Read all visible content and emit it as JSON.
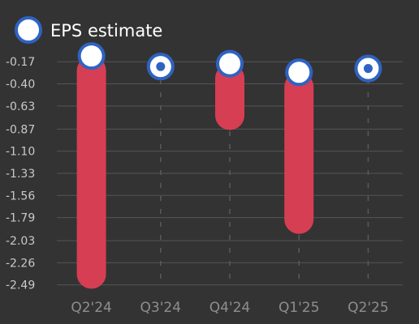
{
  "chart_data": {
    "type": "bar",
    "title": "",
    "xlabel": "",
    "ylabel": "",
    "legend": {
      "placement": "top-left",
      "entries": [
        "EPS estimate"
      ]
    },
    "categories": [
      "Q2'24",
      "Q3'24",
      "Q4'24",
      "Q1'25",
      "Q2'25"
    ],
    "series": [
      {
        "name": "EPS estimate",
        "values": [
          -0.11,
          -0.22,
          -0.19,
          -0.28,
          -0.24
        ]
      }
    ],
    "actual_low": [
      -2.53,
      -0.22,
      -0.88,
      -1.96,
      -0.24
    ],
    "yticks": [
      "-0.17",
      "-0.40",
      "-0.63",
      "-0.87",
      "-1.10",
      "-1.33",
      "-1.56",
      "-1.79",
      "-2.03",
      "-2.26",
      "-2.49"
    ],
    "ylim": [
      -2.56,
      -0.05
    ],
    "grid": true,
    "colors": {
      "background": "#333333",
      "bar": "#d63e54",
      "marker_fill": "#ffffff",
      "marker_stroke": "#2f63c2",
      "grid": "#555555"
    }
  }
}
